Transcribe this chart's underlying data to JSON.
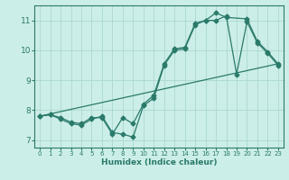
{
  "xlabel": "Humidex (Indice chaleur)",
  "bg_color": "#cceee8",
  "line_color": "#2a7a6a",
  "grid_color": "#aad8d0",
  "xlim": [
    -0.5,
    23.5
  ],
  "ylim": [
    6.75,
    11.5
  ],
  "xticks": [
    0,
    1,
    2,
    3,
    4,
    5,
    6,
    7,
    8,
    9,
    10,
    11,
    12,
    13,
    14,
    15,
    16,
    17,
    18,
    19,
    20,
    21,
    22,
    23
  ],
  "yticks": [
    7,
    8,
    9,
    10,
    11
  ],
  "line1_x": [
    0,
    1,
    2,
    3,
    4,
    5,
    6,
    7,
    8,
    9,
    10,
    11,
    12,
    13,
    14,
    15,
    16,
    17,
    18,
    20,
    21,
    22,
    23
  ],
  "line1_y": [
    7.8,
    7.85,
    7.75,
    7.6,
    7.55,
    7.75,
    7.75,
    7.2,
    7.75,
    7.55,
    8.2,
    8.5,
    9.55,
    10.05,
    10.1,
    10.9,
    11.0,
    11.25,
    11.1,
    11.05,
    10.3,
    9.95,
    9.55
  ],
  "line2_x": [
    0,
    1,
    2,
    3,
    4,
    5,
    6,
    7,
    8,
    9,
    10,
    11,
    12,
    13,
    14,
    15,
    16,
    17,
    18,
    19,
    20,
    21,
    22,
    23
  ],
  "line2_y": [
    7.8,
    7.85,
    7.7,
    7.55,
    7.5,
    7.7,
    7.8,
    7.25,
    7.2,
    7.1,
    8.15,
    8.4,
    9.5,
    10.0,
    10.05,
    10.85,
    11.0,
    11.0,
    11.15,
    9.2,
    10.95,
    10.25,
    9.9,
    9.5
  ],
  "line3_x": [
    0,
    23
  ],
  "line3_y": [
    7.8,
    9.55
  ]
}
